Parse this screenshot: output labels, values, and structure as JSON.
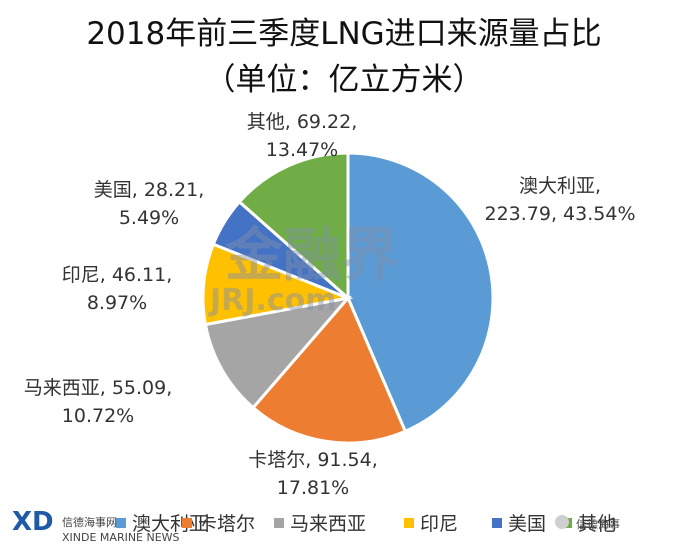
{
  "chart_data": {
    "type": "pie",
    "title": "2018年前三季度LNG进口来源量占比",
    "subtitle": "（单位：亿立方米）",
    "slices": [
      {
        "name": "澳大利亚",
        "value": 223.79,
        "percent": 43.54,
        "value_text": "223.79",
        "percent_text": "43.54%",
        "color": "#5B9BD5"
      },
      {
        "name": "卡塔尔",
        "value": 91.54,
        "percent": 17.81,
        "value_text": "91.54",
        "percent_text": "17.81%",
        "color": "#ED7D31"
      },
      {
        "name": "马来西亚",
        "value": 55.09,
        "percent": 10.72,
        "value_text": "55.09",
        "percent_text": "10.72%",
        "color": "#A5A5A5"
      },
      {
        "name": "印尼",
        "value": 46.11,
        "percent": 8.97,
        "value_text": "46.11",
        "percent_text": "8.97%",
        "color": "#FFC000"
      },
      {
        "name": "美国",
        "value": 28.21,
        "percent": 5.49,
        "value_text": "28.21",
        "percent_text": "5.49%",
        "color": "#4472C4"
      },
      {
        "name": "其他",
        "value": 69.22,
        "percent": 13.47,
        "value_text": "69.22",
        "percent_text": "13.47%",
        "color": "#70AD47"
      }
    ],
    "legend_position": "bottom"
  },
  "watermark": {
    "text_cn": "金融界",
    "text_en": "JRJ.com"
  },
  "branding": {
    "logo_text": "信德海事网",
    "logo_sub": "XINDE MARINE NEWS",
    "wechat": "信德海事"
  }
}
